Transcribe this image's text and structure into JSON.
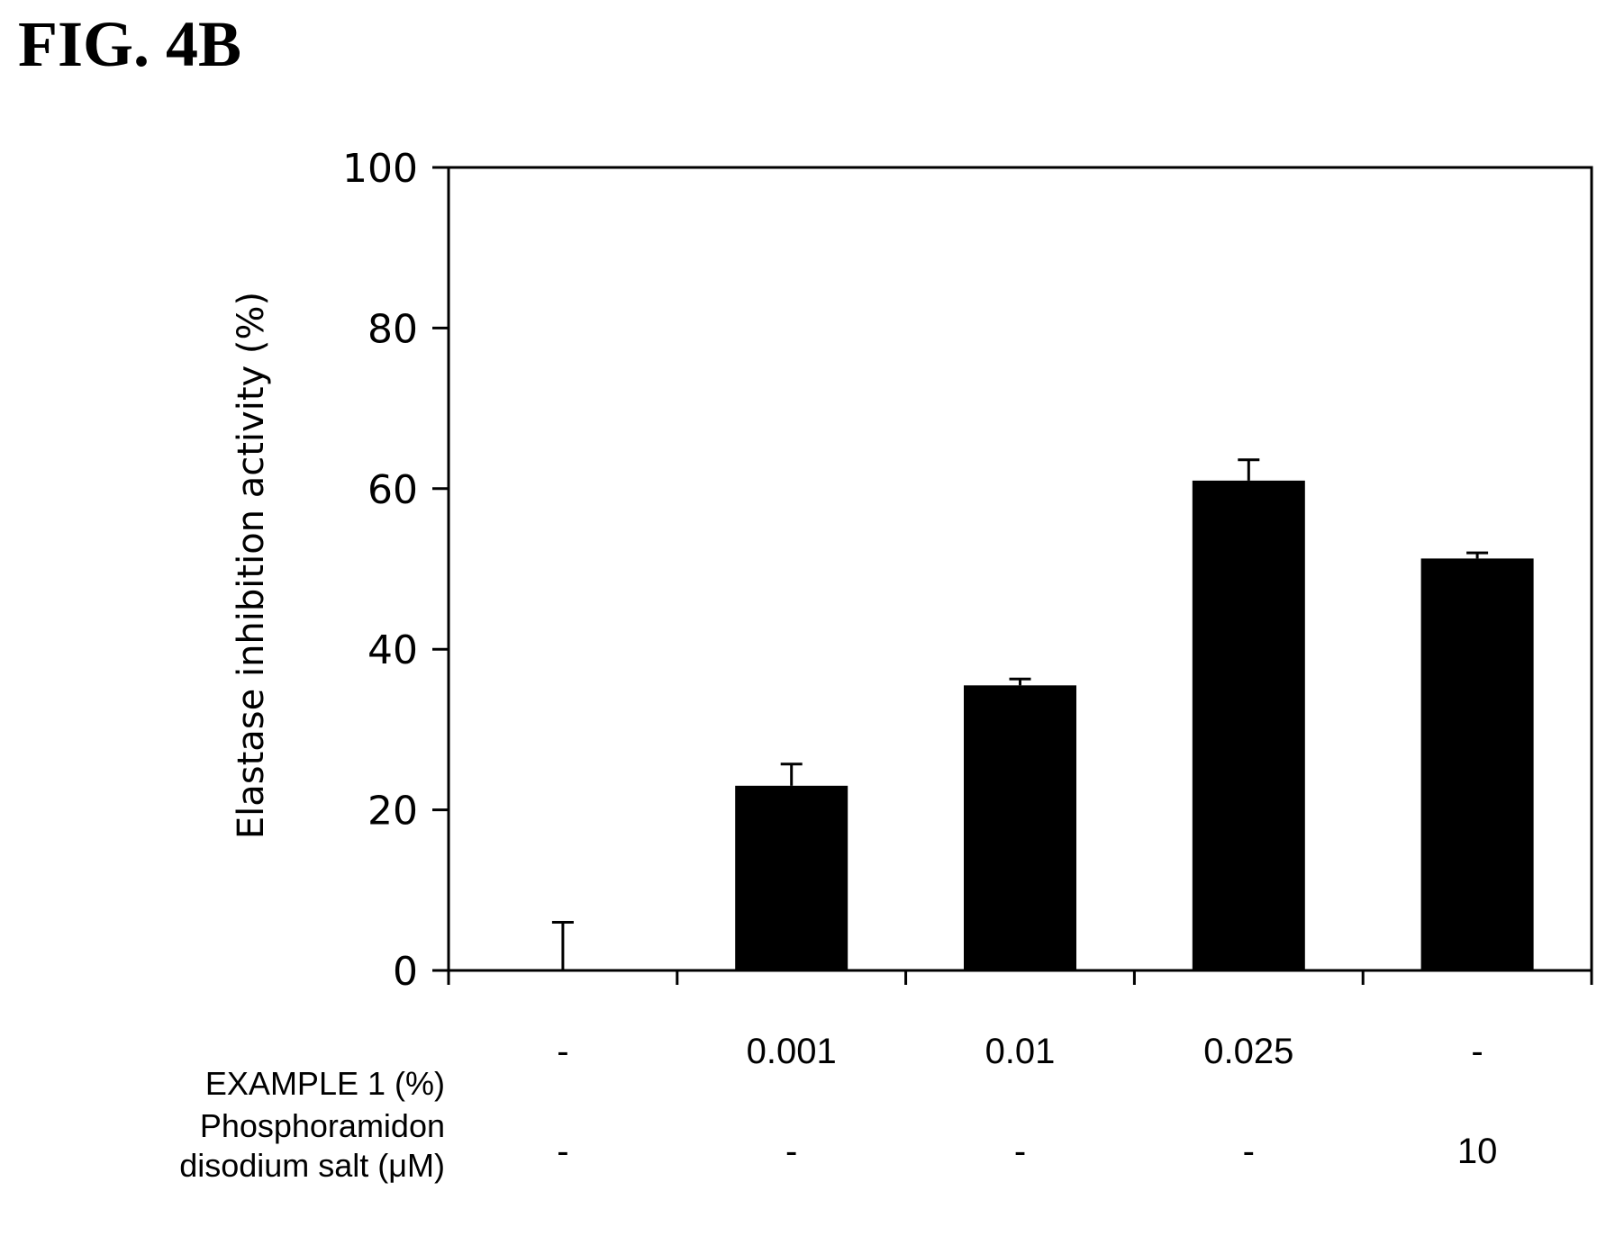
{
  "figure_label": "FIG. 4B",
  "chart_data": {
    "type": "bar",
    "title": "",
    "ylabel": "Elastase inhibition activity (%)",
    "xlabel": "",
    "ylim": [
      0,
      100
    ],
    "yticks": [
      0,
      20,
      40,
      60,
      80,
      100
    ],
    "grid": false,
    "categories": [
      "- / -",
      "0.001 / -",
      "0.01 / -",
      "0.025 / -",
      "- / 10"
    ],
    "values": [
      0,
      23,
      35.5,
      61,
      51.3
    ],
    "error_upper": [
      6,
      2.7,
      0.8,
      2.6,
      0.7
    ],
    "bar_color": "#000000"
  },
  "conditions": {
    "rows": [
      {
        "label_lines": [
          "EXAMPLE 1 (%)"
        ],
        "values": [
          "-",
          "0.001",
          "0.01",
          "0.025",
          "-"
        ]
      },
      {
        "label_lines": [
          "Phosphoramidon",
          "disodium salt (μM)"
        ],
        "values": [
          "-",
          "-",
          "-",
          "-",
          "10"
        ]
      }
    ]
  }
}
